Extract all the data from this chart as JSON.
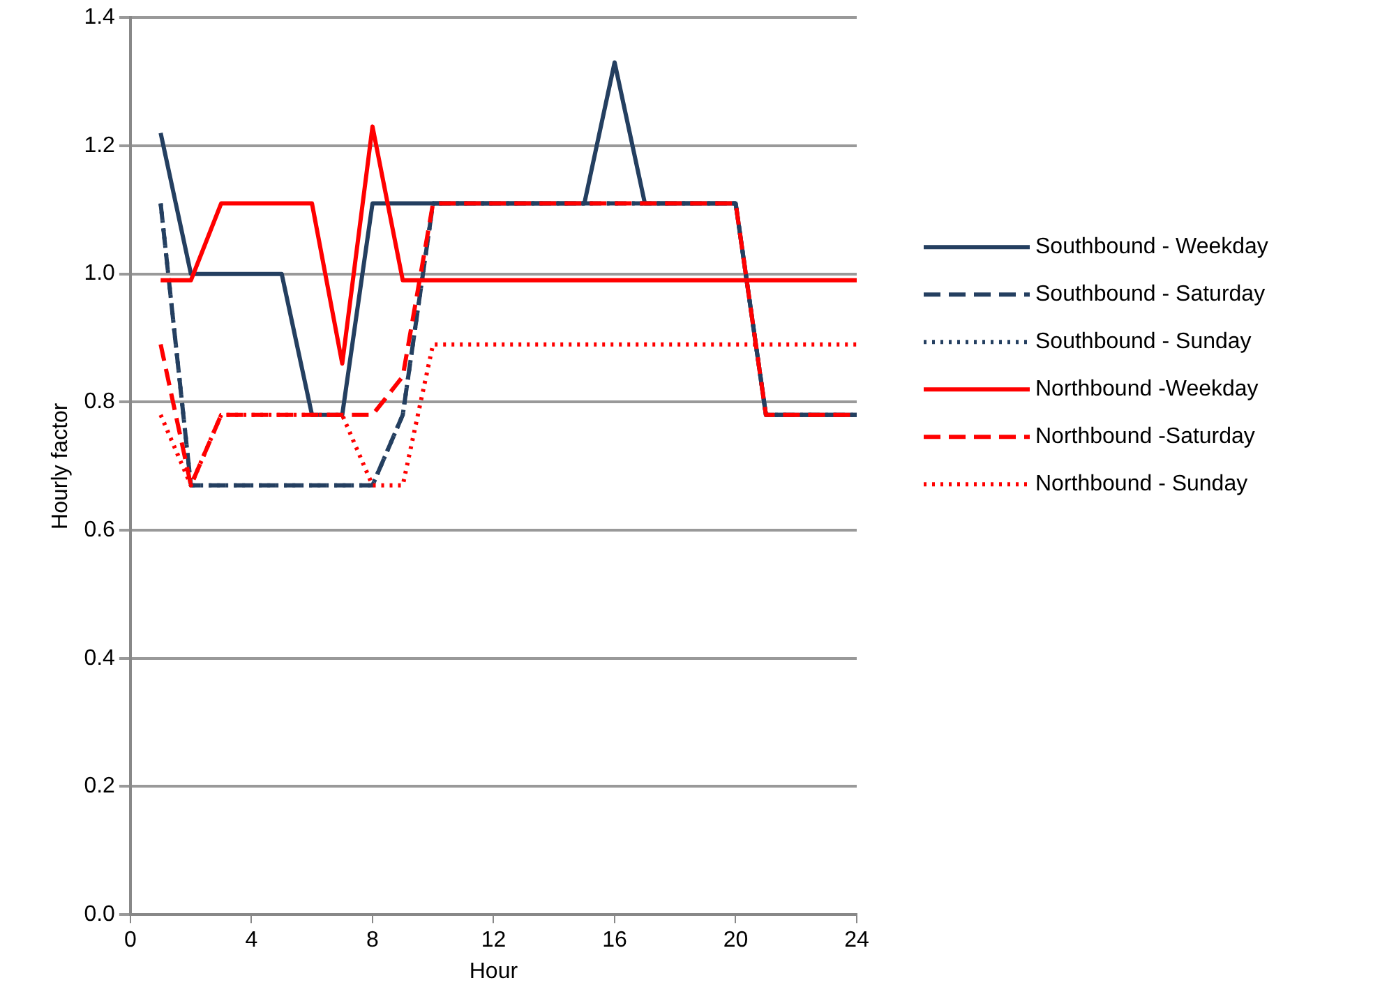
{
  "chart_data": {
    "type": "line",
    "xlabel": "Hour",
    "ylabel": "Hourly factor",
    "x": [
      1,
      2,
      3,
      4,
      5,
      6,
      7,
      8,
      9,
      10,
      11,
      12,
      13,
      14,
      15,
      16,
      17,
      18,
      19,
      20,
      21,
      22,
      23,
      24
    ],
    "xlim": [
      0,
      24
    ],
    "xticks": [
      0,
      4,
      8,
      12,
      16,
      20,
      24
    ],
    "ylim": [
      0,
      1.4
    ],
    "yticks": [
      {
        "value": 0,
        "label": "0.0"
      },
      {
        "value": 0.2,
        "label": "0.2"
      },
      {
        "value": 0.4,
        "label": "0.4"
      },
      {
        "value": 0.6,
        "label": "0.6"
      },
      {
        "value": 0.8,
        "label": "0.8"
      },
      {
        "value": 1,
        "label": "1.0"
      },
      {
        "value": 1.2,
        "label": "1.2"
      },
      {
        "value": 1.4,
        "label": "1.4"
      }
    ],
    "grid": "y",
    "legend": "right",
    "marker": "none",
    "series": [
      {
        "name": "Southbound - Weekday",
        "color": "#243f60",
        "line_style": "solid",
        "values": [
          1.22,
          1.0,
          1.0,
          1.0,
          1.0,
          0.78,
          0.78,
          1.11,
          1.11,
          1.11,
          1.11,
          1.11,
          1.11,
          1.11,
          1.11,
          1.33,
          1.11,
          1.11,
          1.11,
          1.11,
          0.78,
          0.78,
          0.78,
          0.78
        ]
      },
      {
        "name": "Southbound - Saturday",
        "color": "#243f60",
        "line_style": "dashed",
        "values": [
          1.11,
          0.67,
          0.67,
          0.67,
          0.67,
          0.67,
          0.67,
          0.67,
          0.78,
          1.11,
          1.11,
          1.11,
          1.11,
          1.11,
          1.11,
          1.11,
          1.11,
          1.11,
          1.11,
          1.11,
          0.78,
          0.78,
          0.78,
          0.78
        ]
      },
      {
        "name": "Southbound - Sunday",
        "color": "#243f60",
        "line_style": "dotted",
        "values": [
          1.11,
          0.67,
          0.67,
          0.67,
          0.67,
          0.67,
          0.67,
          0.67,
          0.78,
          1.11,
          1.11,
          1.11,
          1.11,
          1.11,
          1.11,
          1.11,
          1.11,
          1.11,
          1.11,
          1.11,
          0.78,
          0.78,
          0.78,
          0.78
        ]
      },
      {
        "name": "Northbound -Weekday",
        "color": "#ff0000",
        "line_style": "solid",
        "values": [
          0.99,
          0.99,
          1.11,
          1.11,
          1.11,
          1.11,
          0.86,
          1.23,
          0.99,
          0.99,
          0.99,
          0.99,
          0.99,
          0.99,
          0.99,
          0.99,
          0.99,
          0.99,
          0.99,
          0.99,
          0.99,
          0.99,
          0.99,
          0.99
        ]
      },
      {
        "name": "Northbound -Saturday",
        "color": "#ff0000",
        "line_style": "dashed",
        "values": [
          0.89,
          0.67,
          0.78,
          0.78,
          0.78,
          0.78,
          0.78,
          0.78,
          0.84,
          1.11,
          1.11,
          1.11,
          1.11,
          1.11,
          1.11,
          1.11,
          1.11,
          1.11,
          1.11,
          1.11,
          0.78,
          0.78,
          0.78,
          0.78
        ]
      },
      {
        "name": "Northbound - Sunday",
        "color": "#ff0000",
        "line_style": "dotted",
        "values": [
          0.78,
          0.67,
          0.78,
          0.78,
          0.78,
          0.78,
          0.78,
          0.67,
          0.67,
          0.89,
          0.89,
          0.89,
          0.89,
          0.89,
          0.89,
          0.89,
          0.89,
          0.89,
          0.89,
          0.89,
          0.89,
          0.89,
          0.89,
          0.89
        ]
      }
    ]
  }
}
